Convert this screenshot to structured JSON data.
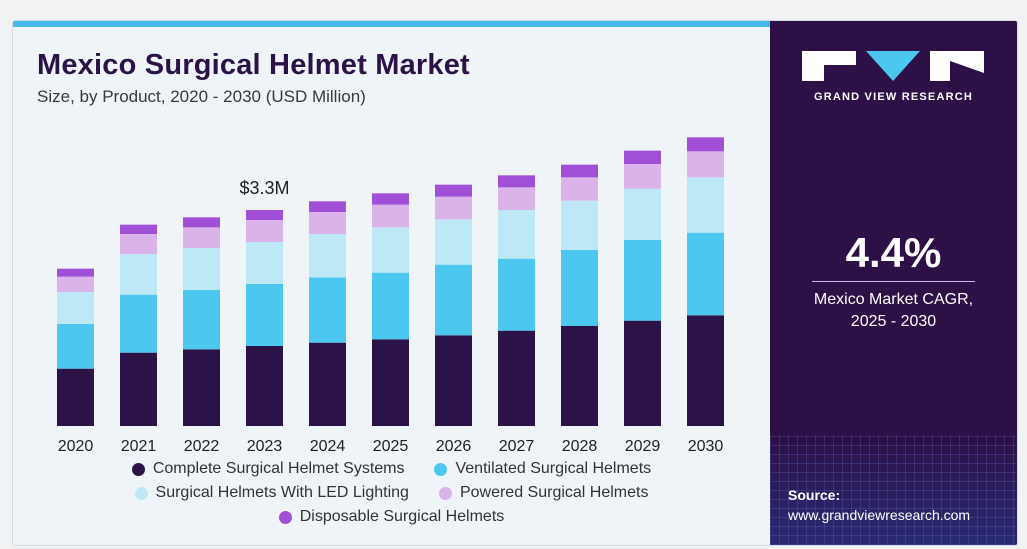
{
  "header": {
    "title": "Mexico Surgical Helmet Market",
    "subtitle": "Size, by Product, 2020 - 2030 (USD Million)"
  },
  "sidebar": {
    "brand": "GRAND VIEW RESEARCH",
    "cagr_value": "4.4%",
    "cagr_label_line1": "Mexico Market CAGR,",
    "cagr_label_line2": "2025 - 2030",
    "source_label": "Source:",
    "source_url": "www.grandviewresearch.com"
  },
  "colors": {
    "complete": "#2b1347",
    "ventilated": "#4cc8f0",
    "led": "#bfe8f7",
    "powered": "#d9b3ea",
    "disposable": "#a04fd6"
  },
  "legend": {
    "complete": "Complete Surgical Helmet Systems",
    "ventilated": "Ventilated Surgical Helmets",
    "led": "Surgical Helmets With LED Lighting",
    "powered": "Powered Surgical Helmets",
    "disposable": "Disposable Surgical Helmets"
  },
  "chart_data": {
    "type": "bar",
    "stacked": true,
    "categories": [
      "2020",
      "2021",
      "2022",
      "2023",
      "2024",
      "2025",
      "2026",
      "2027",
      "2028",
      "2029",
      "2030"
    ],
    "series": [
      {
        "name": "Complete Surgical Helmet Systems",
        "color": "#2b1347",
        "values": [
          0.86,
          1.1,
          1.15,
          1.2,
          1.25,
          1.3,
          1.36,
          1.43,
          1.5,
          1.58,
          1.66
        ]
      },
      {
        "name": "Ventilated Surgical Helmets",
        "color": "#4cc8f0",
        "values": [
          0.67,
          0.87,
          0.89,
          0.93,
          0.98,
          1.0,
          1.06,
          1.08,
          1.14,
          1.21,
          1.24
        ]
      },
      {
        "name": "Surgical Helmets With LED Lighting",
        "color": "#bfe8f7",
        "values": [
          0.48,
          0.61,
          0.63,
          0.63,
          0.65,
          0.68,
          0.68,
          0.73,
          0.74,
          0.77,
          0.83
        ]
      },
      {
        "name": "Powered Surgical Helmets",
        "color": "#d9b3ea",
        "values": [
          0.23,
          0.3,
          0.31,
          0.33,
          0.33,
          0.34,
          0.34,
          0.34,
          0.35,
          0.37,
          0.39
        ]
      },
      {
        "name": "Disposable Surgical Helmets",
        "color": "#a04fd6",
        "values": [
          0.12,
          0.14,
          0.15,
          0.15,
          0.16,
          0.17,
          0.18,
          0.18,
          0.19,
          0.2,
          0.21
        ]
      }
    ],
    "annotations": [
      {
        "category": "2023",
        "text": "$3.3M"
      }
    ],
    "ylim": [
      0,
      4.5
    ],
    "grid": false,
    "legend_position": "bottom"
  }
}
